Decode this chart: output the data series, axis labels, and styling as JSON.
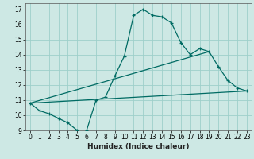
{
  "xlabel": "Humidex (Indice chaleur)",
  "ylabel": "",
  "bg_color": "#cde8e4",
  "grid_color": "#9ecfca",
  "line_color": "#006b63",
  "xlim": [
    -0.5,
    23.5
  ],
  "ylim": [
    9,
    17.4
  ],
  "yticks": [
    9,
    10,
    11,
    12,
    13,
    14,
    15,
    16,
    17
  ],
  "xticks": [
    0,
    1,
    2,
    3,
    4,
    5,
    6,
    7,
    8,
    9,
    10,
    11,
    12,
    13,
    14,
    15,
    16,
    17,
    18,
    19,
    20,
    21,
    22,
    23
  ],
  "line1_x": [
    0,
    1,
    2,
    3,
    4,
    5,
    6,
    7,
    8,
    9,
    10,
    11,
    12,
    13,
    14,
    15,
    16,
    17,
    18,
    19,
    20,
    21,
    22,
    23
  ],
  "line1_y": [
    10.8,
    10.3,
    10.1,
    9.8,
    9.5,
    9.0,
    9.0,
    11.0,
    11.2,
    12.6,
    13.9,
    16.6,
    17.0,
    16.6,
    16.5,
    16.1,
    14.8,
    14.0,
    14.4,
    14.2,
    13.2,
    12.3,
    11.8,
    11.6
  ],
  "line2_x": [
    0,
    23
  ],
  "line2_y": [
    10.8,
    11.6
  ],
  "line3_x": [
    0,
    19
  ],
  "line3_y": [
    10.8,
    14.2
  ],
  "xlabel_fontsize": 6.5,
  "tick_fontsize": 5.5
}
